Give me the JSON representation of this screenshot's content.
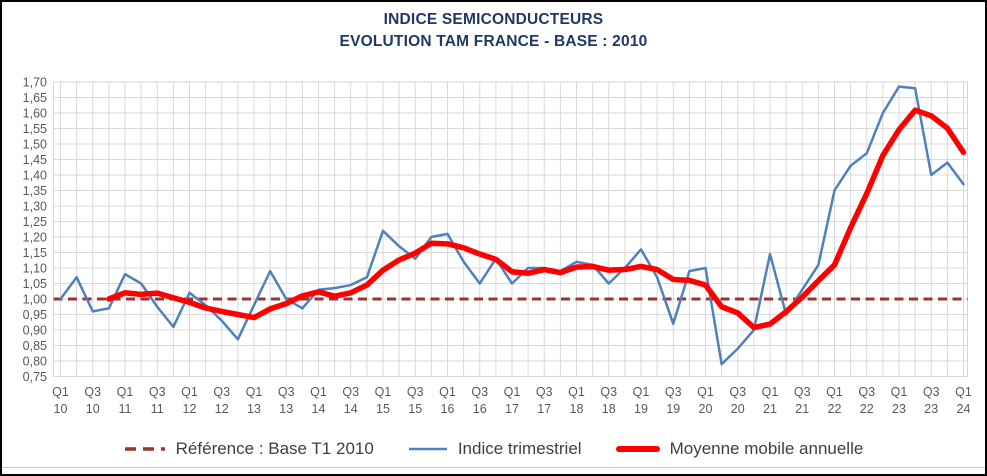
{
  "title": {
    "line1": "INDICE SEMICONDUCTEURS",
    "line2": "EVOLUTION TAM FRANCE - BASE : 2010"
  },
  "legend": {
    "items": [
      {
        "label": "Référence : Base T1 2010",
        "sample": "dashed-line",
        "color": "#953735"
      },
      {
        "label": "Indice trimestriel",
        "sample": "thin-line",
        "color": "#4F81BD"
      },
      {
        "label": "Moyenne mobile annuelle",
        "sample": "thick-line",
        "color": "#FF0000"
      }
    ]
  },
  "colors": {
    "title": "#1F3864",
    "axis_labels": "#595959",
    "gridlines": "#D9D9D9",
    "reference": "#953735",
    "indice": "#4F81BD",
    "moyenne": "#FF0000",
    "legend_text": "#3F3F3F",
    "border": "#000000"
  },
  "chart_data": {
    "type": "line",
    "title": "INDICE SEMICONDUCTEURS — EVOLUTION TAM FRANCE - BASE : 2010",
    "x_start": "Q1 2010",
    "x_end": "Q1 2024",
    "x_frequency": "quarterly",
    "ylim": [
      0.75,
      1.7
    ],
    "ytick_step": 0.05,
    "grid": true,
    "legend_position": "bottom",
    "ytick_labels": [
      "1,70",
      "1,65",
      "1,60",
      "1,55",
      "1,50",
      "1,45",
      "1,40",
      "1,35",
      "1,30",
      "1,25",
      "1,20",
      "1,15",
      "1,10",
      "1,05",
      "1,00",
      "0,95",
      "0,90",
      "0,85",
      "0,80",
      "0,75"
    ],
    "x_ticks": [
      {
        "top": "Q1",
        "bottom": "10"
      },
      {
        "top": "Q3",
        "bottom": "10"
      },
      {
        "top": "Q1",
        "bottom": "11"
      },
      {
        "top": "Q3",
        "bottom": "11"
      },
      {
        "top": "Q1",
        "bottom": "12"
      },
      {
        "top": "Q3",
        "bottom": "12"
      },
      {
        "top": "Q1",
        "bottom": "13"
      },
      {
        "top": "Q3",
        "bottom": "13"
      },
      {
        "top": "Q1",
        "bottom": "14"
      },
      {
        "top": "Q3",
        "bottom": "14"
      },
      {
        "top": "Q1",
        "bottom": "15"
      },
      {
        "top": "Q3",
        "bottom": "15"
      },
      {
        "top": "Q1",
        "bottom": "16"
      },
      {
        "top": "Q3",
        "bottom": "16"
      },
      {
        "top": "Q1",
        "bottom": "17"
      },
      {
        "top": "Q3",
        "bottom": "17"
      },
      {
        "top": "Q1",
        "bottom": "18"
      },
      {
        "top": "Q3",
        "bottom": "18"
      },
      {
        "top": "Q1",
        "bottom": "19"
      },
      {
        "top": "Q3",
        "bottom": "19"
      },
      {
        "top": "Q1",
        "bottom": "20"
      },
      {
        "top": "Q3",
        "bottom": "20"
      },
      {
        "top": "Q1",
        "bottom": "21"
      },
      {
        "top": "Q3",
        "bottom": "21"
      },
      {
        "top": "Q1",
        "bottom": "22"
      },
      {
        "top": "Q3",
        "bottom": "22"
      },
      {
        "top": "Q1",
        "bottom": "23"
      },
      {
        "top": "Q3",
        "bottom": "23"
      },
      {
        "top": "Q1",
        "bottom": "24"
      }
    ],
    "reference": {
      "label": "Référence : Base T1 2010",
      "value": 1.0
    },
    "series": [
      {
        "name": "Indice trimestriel",
        "color": "#4F81BD",
        "width": 2.5,
        "values": [
          1.0,
          1.07,
          0.96,
          0.97,
          1.08,
          1.05,
          0.975,
          0.91,
          1.02,
          0.98,
          0.93,
          0.87,
          0.98,
          1.09,
          1.0,
          0.97,
          1.03,
          1.035,
          1.045,
          1.07,
          1.22,
          1.17,
          1.13,
          1.2,
          1.21,
          1.12,
          1.05,
          1.13,
          1.05,
          1.1,
          1.1,
          1.09,
          1.12,
          1.11,
          1.05,
          1.1,
          1.16,
          1.07,
          0.92,
          1.09,
          1.1,
          0.79,
          0.84,
          0.9,
          1.145,
          0.95,
          1.03,
          1.11,
          1.35,
          1.43,
          1.47,
          1.6,
          1.685,
          1.68,
          1.4,
          1.44,
          1.37
        ]
      },
      {
        "name": "Moyenne mobile annuelle",
        "color": "#FF0000",
        "width": 5.5,
        "values": [
          null,
          null,
          null,
          1.0,
          1.02,
          1.015,
          1.019,
          1.004,
          0.989,
          0.971,
          0.96,
          0.95,
          0.94,
          0.968,
          0.985,
          1.01,
          1.023,
          1.009,
          1.02,
          1.045,
          1.093,
          1.126,
          1.148,
          1.18,
          1.178,
          1.165,
          1.145,
          1.128,
          1.088,
          1.083,
          1.095,
          1.085,
          1.103,
          1.105,
          1.093,
          1.095,
          1.105,
          1.095,
          1.063,
          1.06,
          1.045,
          0.975,
          0.955,
          0.908,
          0.919,
          0.959,
          1.006,
          1.059,
          1.11,
          1.23,
          1.34,
          1.463,
          1.546,
          1.609,
          1.591,
          1.551,
          1.473
        ]
      }
    ]
  }
}
